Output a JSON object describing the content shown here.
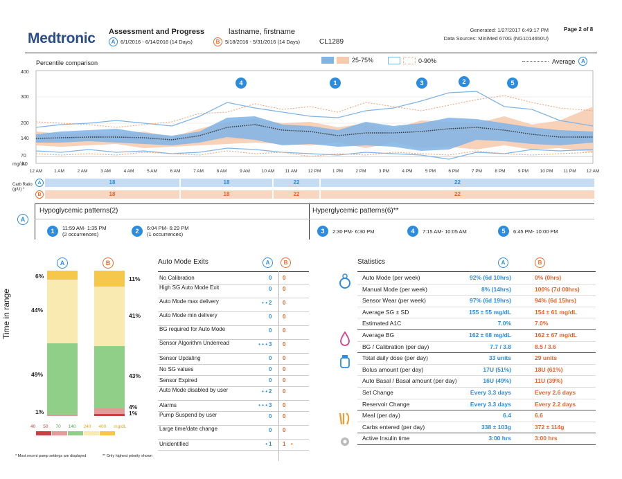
{
  "header": {
    "logo": "Medtronic",
    "title": "Assessment and Progress",
    "patient_name": "lastname, firstname",
    "patient_id": "CL1289",
    "period_a_badge": "A",
    "period_a": "6/1/2016 - 6/14/2016 (14 Days)",
    "period_b_badge": "B",
    "period_b": "5/18/2016 - 5/31/2016 (14 Days)",
    "generated": "Generated: 1/27/2017 6:49:17 PM",
    "sources": "Data Sources: MiniMed 670G (NG1014650U)",
    "page": "Page 2 of 8"
  },
  "percentile": {
    "title": "Percentile comparison",
    "legend_25_75": "25-75%",
    "legend_0_90": "0-90%",
    "legend_average": "Average",
    "legend_badge": "A",
    "y_ticks": [
      "400",
      "300",
      "200",
      "140",
      "70",
      "40"
    ],
    "y_unit": "mg/dL",
    "x_ticks": [
      "12 AM",
      "1 AM",
      "2 AM",
      "3 AM",
      "4 AM",
      "5 AM",
      "6 AM",
      "7 AM",
      "8 AM",
      "9 AM",
      "10 AM",
      "11 AM",
      "12 PM",
      "1 PM",
      "2 PM",
      "3 PM",
      "4 PM",
      "5 PM",
      "6 PM",
      "7 PM",
      "8 PM",
      "9 PM",
      "10 PM",
      "11 PM",
      "12 AM"
    ],
    "markers": [
      "4",
      "1",
      "3",
      "2",
      "5"
    ],
    "colors": {
      "band_a": "#7fb4e6",
      "band_b": "#f7c9ad",
      "avg": "#333333",
      "accent_a": "#2b8ce0",
      "accent_b": "#f06a2a"
    }
  },
  "carb_ratio": {
    "label_line1": "Carb Ratio",
    "label_line2": "(g/U) *",
    "badge_a": "A",
    "badge_b": "B",
    "row_a": [
      "18",
      "18",
      "22",
      "22"
    ],
    "row_b": [
      "18",
      "18",
      "22",
      "22"
    ]
  },
  "patterns": {
    "badge": "A",
    "hypo_title": "Hypoglycemic patterns(2)",
    "hyper_title": "Hyperglycemic patterns(6)**",
    "hypo": [
      {
        "num": "1",
        "time": "11:59 AM- 1:35 PM",
        "occ": "(2 occurrences)"
      },
      {
        "num": "2",
        "time": "6:04 PM- 6:29 PM",
        "occ": "(1 occurrences)"
      }
    ],
    "hyper": [
      {
        "num": "3",
        "time": "2:30 PM- 6:30 PM"
      },
      {
        "num": "4",
        "time": "7:15 AM- 10:05 AM"
      },
      {
        "num": "5",
        "time": "6:45 PM- 10:00 PM"
      }
    ]
  },
  "time_in_range": {
    "ylabel": "Time in range",
    "badge_a": "A",
    "badge_b": "B",
    "a": {
      "top": "6%",
      "mid_high": "44%",
      "in": "49%",
      "low": "1%"
    },
    "b": {
      "top": "11%",
      "mid_high": "41%",
      "in": "43%",
      "low1": "4%",
      "low2": "1%"
    },
    "scale": [
      "40",
      "50",
      "70",
      "140",
      "240",
      "400",
      "mg/dL"
    ]
  },
  "auto_mode_exits": {
    "title": "Auto Mode Exits",
    "badge_a": "A",
    "badge_b": "B",
    "rows": [
      {
        "label": "No Calibration",
        "a": "0",
        "b": "0",
        "dots_a": "",
        "dots_b": ""
      },
      {
        "label": "High SG Auto Mode Exit",
        "a": "0",
        "b": "0",
        "dots_a": "",
        "dots_b": ""
      },
      {
        "label": "Auto Mode max delivery",
        "a": "2",
        "b": "0",
        "dots_a": "• •",
        "dots_b": ""
      },
      {
        "label": "Auto Mode min delivery",
        "a": "0",
        "b": "0",
        "dots_a": "",
        "dots_b": ""
      },
      {
        "label": "BG required for Auto Mode",
        "a": "0",
        "b": "0",
        "dots_a": "",
        "dots_b": ""
      },
      {
        "label": "Sensor Algorithm Underread",
        "a": "3",
        "b": "0",
        "dots_a": "• • •",
        "dots_b": ""
      },
      {
        "label": "Sensor Updating",
        "a": "0",
        "b": "0",
        "dots_a": "",
        "dots_b": ""
      },
      {
        "label": "No SG values",
        "a": "0",
        "b": "0",
        "dots_a": "",
        "dots_b": ""
      },
      {
        "label": "Sensor Expired",
        "a": "0",
        "b": "0",
        "dots_a": "",
        "dots_b": ""
      },
      {
        "label": "Auto Mode disabled by user",
        "a": "2",
        "b": "0",
        "dots_a": "• •",
        "dots_b": ""
      },
      {
        "label": "Alarms",
        "a": "3",
        "b": "0",
        "dots_a": "• • •",
        "dots_b": ""
      },
      {
        "label": "Pump Suspend by user",
        "a": "0",
        "b": "0",
        "dots_a": "",
        "dots_b": ""
      },
      {
        "label": "Large time/date change",
        "a": "0",
        "b": "0",
        "dots_a": "",
        "dots_b": ""
      },
      {
        "label": "Unidentified",
        "a": "1",
        "b": "1",
        "dots_a": "•",
        "dots_b": "•"
      }
    ]
  },
  "statistics": {
    "title": "Statistics",
    "badge_a": "A",
    "badge_b": "B",
    "groups": [
      {
        "icon": "sensor-icon",
        "rows": [
          {
            "label": "Auto Mode (per week)",
            "a": "92% (6d 10hrs)",
            "b": "0% (0hrs)"
          },
          {
            "label": "Manual Mode (per week)",
            "a": "8% (14hrs)",
            "b": "100% (7d 00hrs)"
          },
          {
            "label": "Sensor Wear (per week)",
            "a": "97% (6d 19hrs)",
            "b": "94% (6d 15hrs)"
          },
          {
            "label": "Average SG ± SD",
            "a": "155 ± 55 mg/dL",
            "b": "154 ± 61 mg/dL"
          },
          {
            "label": "Estimated A1C",
            "a": "7.0%",
            "b": "7.0%"
          }
        ]
      },
      {
        "icon": "blood-drop-icon",
        "rows": [
          {
            "label": "Average BG",
            "a": "162 ± 68 mg/dL",
            "b": "162 ± 67 mg/dL"
          },
          {
            "label": "BG / Calibration (per day)",
            "a": "7.7 / 3.8",
            "b": "8.5 / 3.6"
          }
        ]
      },
      {
        "icon": "insulin-vial-icon",
        "rows": [
          {
            "label": "Total daily dose (per day)",
            "a": "33 units",
            "b": "29 units"
          },
          {
            "label": "Bolus amount (per day)",
            "a": "17U (51%)",
            "b": "18U (61%)"
          },
          {
            "label": "Auto Basal / Basal amount (per day)",
            "a": "16U (49%)",
            "b": "11U (39%)"
          },
          {
            "label": "Set Change",
            "a": "Every 3.3 days",
            "b": "Every 2.6 days"
          },
          {
            "label": "Reservoir Change",
            "a": "Every 3.3 days",
            "b": "Every 2.2 days"
          }
        ]
      },
      {
        "icon": "meal-icon",
        "rows": [
          {
            "label": "Meal (per day)",
            "a": "6.4",
            "b": "6.6"
          },
          {
            "label": "Carbs entered (per day)",
            "a": "338 ± 103g",
            "b": "372 ± 114g"
          }
        ]
      },
      {
        "icon": "gear-icon",
        "rows": [
          {
            "label": "Active Insulin time",
            "a": "3:00 hrs",
            "b": "3:00 hrs"
          }
        ]
      }
    ]
  },
  "footnotes": {
    "note1": "* Most recent pump settings are displayed",
    "note2": "** Only highest priority shown"
  }
}
